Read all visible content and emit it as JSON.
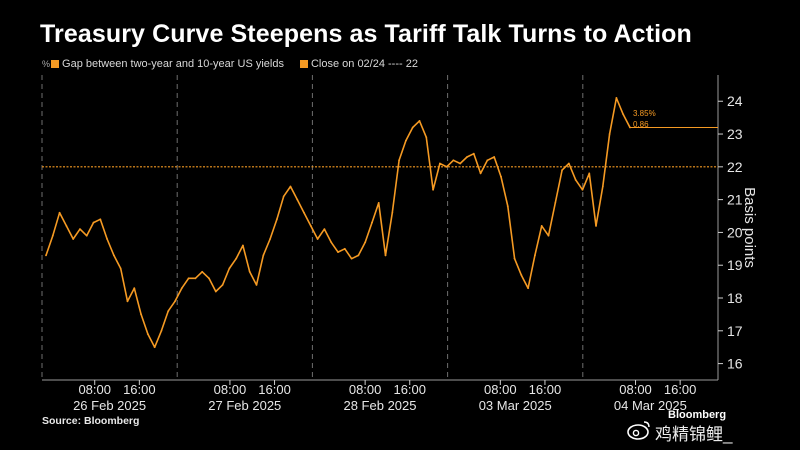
{
  "title": "Treasury Curve Steepens as Tariff Talk Turns to Action",
  "legend": {
    "prefix": "%",
    "series_label": "Gap between two-year and 10-year US yields",
    "close_label": "Close on 02/24 ---- 22"
  },
  "source": "Source: Bloomberg",
  "brand": "Bloomberg",
  "watermark": "鸡精锦鲤_",
  "colors": {
    "background": "#000000",
    "series": "#f59a23",
    "grid": "#6e6e6e",
    "text": "#ffffff"
  },
  "chart_data": {
    "type": "line",
    "ylabel": "Basis points",
    "ylim": [
      15.5,
      24.8
    ],
    "yticks": [
      16,
      17,
      18,
      19,
      20,
      21,
      22,
      23,
      24
    ],
    "y_axis_position": "right",
    "grid": "dashed vertical day separators",
    "reference_line": {
      "label": "Close on 02/24",
      "value": 22
    },
    "end_annotations": [
      "3.85%",
      "0.86"
    ],
    "days": [
      {
        "date": "26 Feb 2025",
        "time_ticks": [
          "08:00",
          "16:00"
        ]
      },
      {
        "date": "27 Feb 2025",
        "time_ticks": [
          "08:00",
          "16:00"
        ]
      },
      {
        "date": "28 Feb 2025",
        "time_ticks": [
          "08:00",
          "16:00"
        ]
      },
      {
        "date": "03 Mar 2025",
        "time_ticks": [
          "08:00",
          "16:00"
        ]
      },
      {
        "date": "04 Mar 2025",
        "time_ticks": [
          "08:00",
          "16:00"
        ]
      }
    ],
    "series": [
      {
        "values": [
          19.3,
          19.9,
          20.6,
          20.2,
          19.8,
          20.1,
          19.9,
          20.3,
          20.4,
          19.8,
          19.3,
          18.9,
          17.9,
          18.3,
          17.5,
          16.9,
          16.5,
          17.0,
          17.6,
          17.9,
          18.3,
          18.6,
          18.6,
          18.8,
          18.6,
          18.2,
          18.4,
          18.9,
          19.2,
          19.6,
          18.8,
          18.4,
          19.3,
          19.8,
          20.4,
          21.1,
          21.4,
          21.0,
          20.6,
          20.2,
          19.8,
          20.1,
          19.7,
          19.4,
          19.5,
          19.2,
          19.3,
          19.7,
          20.3,
          20.9,
          19.3,
          20.6,
          22.2,
          22.8,
          23.2,
          23.4,
          22.9,
          21.3,
          22.1,
          22.0,
          22.2,
          22.1,
          22.3,
          22.4,
          21.8,
          22.2,
          22.3,
          21.7,
          20.8,
          19.2,
          18.7,
          18.3,
          19.3,
          20.2,
          19.9,
          20.9,
          21.9,
          22.1,
          21.6,
          21.3,
          21.8,
          20.2,
          21.4,
          23.0,
          24.1,
          23.6,
          23.2
        ]
      }
    ]
  }
}
